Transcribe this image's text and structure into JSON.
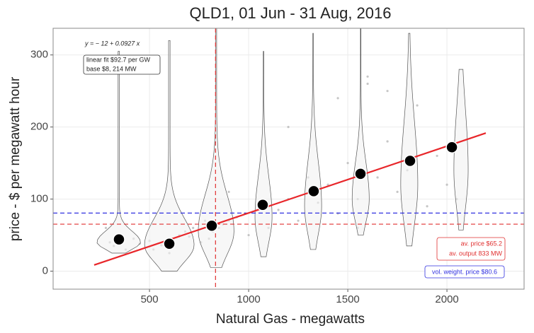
{
  "chart_data": {
    "type": "scatter",
    "title": "QLD1, 01 Jun - 31 Aug, 2016",
    "x_label": "Natural Gas  - megawatts",
    "y_label": "price - $ per megawatt hour",
    "xlim": [
      14,
      2389
    ],
    "ylim": [
      -25,
      337
    ],
    "xticks": [
      500,
      1000,
      1500,
      2000
    ],
    "yticks": [
      0,
      100,
      200,
      300
    ],
    "grid": true,
    "points": {
      "color": "#b8b8b8",
      "x": [
        300,
        320,
        350,
        380,
        280,
        420,
        450,
        500,
        520,
        560,
        580,
        600,
        620,
        650,
        680,
        700,
        720,
        760,
        780,
        800,
        820,
        850,
        870,
        900,
        940,
        980,
        1000,
        1050,
        1100,
        1150,
        1200,
        1250,
        1300,
        1350,
        1400,
        1450,
        1500,
        1550,
        1600,
        1650,
        1700,
        1750,
        1800,
        1850,
        1900,
        1950,
        2000,
        1600,
        1450,
        1200,
        900,
        1700,
        2050,
        1550,
        1300
      ],
      "values": [
        40,
        35,
        50,
        30,
        60,
        45,
        38,
        42,
        30,
        36,
        40,
        25,
        45,
        50,
        55,
        48,
        60,
        40,
        70,
        45,
        55,
        60,
        65,
        70,
        75,
        80,
        50,
        90,
        60,
        85,
        100,
        70,
        110,
        95,
        120,
        80,
        150,
        100,
        260,
        130,
        250,
        110,
        140,
        230,
        90,
        160,
        120,
        270,
        240,
        200,
        110,
        180,
        100,
        60,
        130
      ]
    },
    "violins": [
      {
        "x": 345,
        "min": 25,
        "max": 305,
        "peak": 40,
        "width": 110
      },
      {
        "x": 600,
        "min": 0,
        "max": 320,
        "peak": 36,
        "width": 125
      },
      {
        "x": 836,
        "min": 5,
        "max": 337,
        "peak": 55,
        "width": 90
      },
      {
        "x": 1075,
        "min": 20,
        "max": 305,
        "peak": 75,
        "width": 43
      },
      {
        "x": 1325,
        "min": 30,
        "max": 330,
        "peak": 90,
        "width": 43
      },
      {
        "x": 1565,
        "min": 50,
        "max": 337,
        "peak": 100,
        "width": 43
      },
      {
        "x": 1810,
        "min": 35,
        "max": 330,
        "peak": 120,
        "width": 43
      },
      {
        "x": 2071,
        "min": 57,
        "max": 280,
        "peak": 140,
        "width": 36
      }
    ],
    "means": {
      "color": "#000000",
      "x": [
        346,
        600,
        814,
        1071,
        1328,
        1564,
        1814,
        2025
      ],
      "values": [
        44,
        38,
        63,
        92,
        111,
        135,
        153,
        172
      ]
    },
    "fit": {
      "color": "#e8262a",
      "x": [
        221,
        2196
      ],
      "values": [
        8.5,
        191.6
      ]
    },
    "hlines": [
      {
        "value": 65.2,
        "color": "#e03030"
      },
      {
        "value": 80.6,
        "color": "#3030e0"
      }
    ],
    "vlines": [
      {
        "value": 833,
        "color": "#e03030"
      }
    ],
    "annotations": {
      "equation": "y = − 12 + 0.0927 x",
      "fit_box": [
        "linear fit $92.7 per GW",
        "base $8, 214 MW"
      ],
      "average_box": [
        "av. price $65.2",
        "av. output 833 MW"
      ],
      "vwap_box": [
        "vol. weight. price $80.6"
      ]
    }
  }
}
